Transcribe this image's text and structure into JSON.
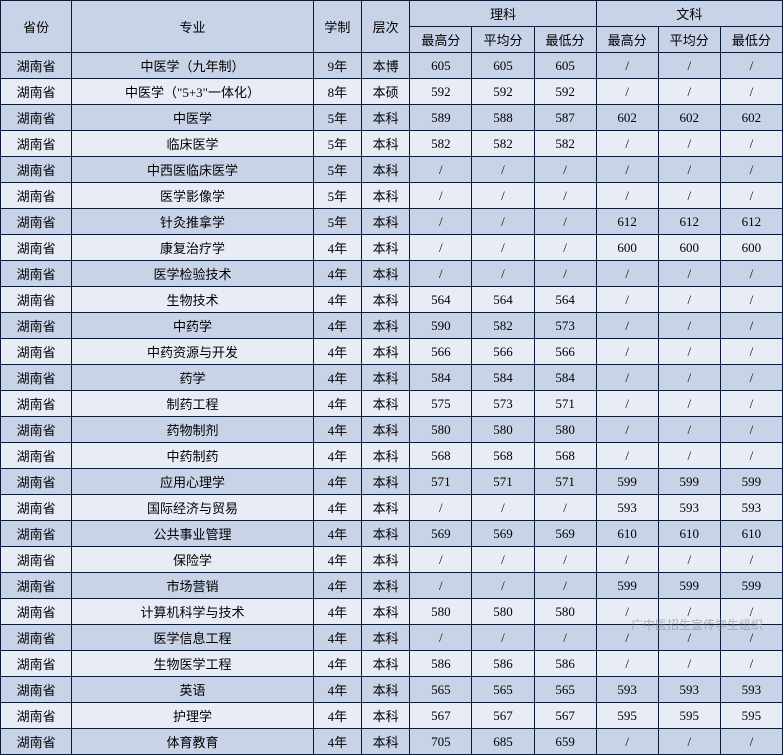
{
  "headers": {
    "province": "省份",
    "major": "专业",
    "duration": "学制",
    "level": "层次",
    "science": "理科",
    "arts": "文科",
    "max": "最高分",
    "avg": "平均分",
    "min": "最低分"
  },
  "colors": {
    "header_bg": "#c9d3e8",
    "row_odd_bg": "#c9d3e8",
    "row_even_bg": "#e8ecf5",
    "border": "#0a1a3a"
  },
  "watermark": "广中医招生宣传学生组织",
  "rows": [
    {
      "province": "湖南省",
      "major": "中医学（九年制）",
      "duration": "9年",
      "level": "本博",
      "sci_max": "605",
      "sci_avg": "605",
      "sci_min": "605",
      "art_max": "/",
      "art_avg": "/",
      "art_min": "/"
    },
    {
      "province": "湖南省",
      "major": "中医学（\"5+3\"一体化）",
      "duration": "8年",
      "level": "本硕",
      "sci_max": "592",
      "sci_avg": "592",
      "sci_min": "592",
      "art_max": "/",
      "art_avg": "/",
      "art_min": "/"
    },
    {
      "province": "湖南省",
      "major": "中医学",
      "duration": "5年",
      "level": "本科",
      "sci_max": "589",
      "sci_avg": "588",
      "sci_min": "587",
      "art_max": "602",
      "art_avg": "602",
      "art_min": "602"
    },
    {
      "province": "湖南省",
      "major": "临床医学",
      "duration": "5年",
      "level": "本科",
      "sci_max": "582",
      "sci_avg": "582",
      "sci_min": "582",
      "art_max": "/",
      "art_avg": "/",
      "art_min": "/"
    },
    {
      "province": "湖南省",
      "major": "中西医临床医学",
      "duration": "5年",
      "level": "本科",
      "sci_max": "/",
      "sci_avg": "/",
      "sci_min": "/",
      "art_max": "/",
      "art_avg": "/",
      "art_min": "/"
    },
    {
      "province": "湖南省",
      "major": "医学影像学",
      "duration": "5年",
      "level": "本科",
      "sci_max": "/",
      "sci_avg": "/",
      "sci_min": "/",
      "art_max": "/",
      "art_avg": "/",
      "art_min": "/"
    },
    {
      "province": "湖南省",
      "major": "针灸推拿学",
      "duration": "5年",
      "level": "本科",
      "sci_max": "/",
      "sci_avg": "/",
      "sci_min": "/",
      "art_max": "612",
      "art_avg": "612",
      "art_min": "612"
    },
    {
      "province": "湖南省",
      "major": "康复治疗学",
      "duration": "4年",
      "level": "本科",
      "sci_max": "/",
      "sci_avg": "/",
      "sci_min": "/",
      "art_max": "600",
      "art_avg": "600",
      "art_min": "600"
    },
    {
      "province": "湖南省",
      "major": "医学检验技术",
      "duration": "4年",
      "level": "本科",
      "sci_max": "/",
      "sci_avg": "/",
      "sci_min": "/",
      "art_max": "/",
      "art_avg": "/",
      "art_min": "/"
    },
    {
      "province": "湖南省",
      "major": "生物技术",
      "duration": "4年",
      "level": "本科",
      "sci_max": "564",
      "sci_avg": "564",
      "sci_min": "564",
      "art_max": "/",
      "art_avg": "/",
      "art_min": "/"
    },
    {
      "province": "湖南省",
      "major": "中药学",
      "duration": "4年",
      "level": "本科",
      "sci_max": "590",
      "sci_avg": "582",
      "sci_min": "573",
      "art_max": "/",
      "art_avg": "/",
      "art_min": "/"
    },
    {
      "province": "湖南省",
      "major": "中药资源与开发",
      "duration": "4年",
      "level": "本科",
      "sci_max": "566",
      "sci_avg": "566",
      "sci_min": "566",
      "art_max": "/",
      "art_avg": "/",
      "art_min": "/"
    },
    {
      "province": "湖南省",
      "major": "药学",
      "duration": "4年",
      "level": "本科",
      "sci_max": "584",
      "sci_avg": "584",
      "sci_min": "584",
      "art_max": "/",
      "art_avg": "/",
      "art_min": "/"
    },
    {
      "province": "湖南省",
      "major": "制药工程",
      "duration": "4年",
      "level": "本科",
      "sci_max": "575",
      "sci_avg": "573",
      "sci_min": "571",
      "art_max": "/",
      "art_avg": "/",
      "art_min": "/"
    },
    {
      "province": "湖南省",
      "major": "药物制剂",
      "duration": "4年",
      "level": "本科",
      "sci_max": "580",
      "sci_avg": "580",
      "sci_min": "580",
      "art_max": "/",
      "art_avg": "/",
      "art_min": "/"
    },
    {
      "province": "湖南省",
      "major": "中药制药",
      "duration": "4年",
      "level": "本科",
      "sci_max": "568",
      "sci_avg": "568",
      "sci_min": "568",
      "art_max": "/",
      "art_avg": "/",
      "art_min": "/"
    },
    {
      "province": "湖南省",
      "major": "应用心理学",
      "duration": "4年",
      "level": "本科",
      "sci_max": "571",
      "sci_avg": "571",
      "sci_min": "571",
      "art_max": "599",
      "art_avg": "599",
      "art_min": "599"
    },
    {
      "province": "湖南省",
      "major": "国际经济与贸易",
      "duration": "4年",
      "level": "本科",
      "sci_max": "/",
      "sci_avg": "/",
      "sci_min": "/",
      "art_max": "593",
      "art_avg": "593",
      "art_min": "593"
    },
    {
      "province": "湖南省",
      "major": "公共事业管理",
      "duration": "4年",
      "level": "本科",
      "sci_max": "569",
      "sci_avg": "569",
      "sci_min": "569",
      "art_max": "610",
      "art_avg": "610",
      "art_min": "610"
    },
    {
      "province": "湖南省",
      "major": "保险学",
      "duration": "4年",
      "level": "本科",
      "sci_max": "/",
      "sci_avg": "/",
      "sci_min": "/",
      "art_max": "/",
      "art_avg": "/",
      "art_min": "/"
    },
    {
      "province": "湖南省",
      "major": "市场营销",
      "duration": "4年",
      "level": "本科",
      "sci_max": "/",
      "sci_avg": "/",
      "sci_min": "/",
      "art_max": "599",
      "art_avg": "599",
      "art_min": "599"
    },
    {
      "province": "湖南省",
      "major": "计算机科学与技术",
      "duration": "4年",
      "level": "本科",
      "sci_max": "580",
      "sci_avg": "580",
      "sci_min": "580",
      "art_max": "/",
      "art_avg": "/",
      "art_min": "/"
    },
    {
      "province": "湖南省",
      "major": "医学信息工程",
      "duration": "4年",
      "level": "本科",
      "sci_max": "/",
      "sci_avg": "/",
      "sci_min": "/",
      "art_max": "/",
      "art_avg": "/",
      "art_min": "/"
    },
    {
      "province": "湖南省",
      "major": "生物医学工程",
      "duration": "4年",
      "level": "本科",
      "sci_max": "586",
      "sci_avg": "586",
      "sci_min": "586",
      "art_max": "/",
      "art_avg": "/",
      "art_min": "/"
    },
    {
      "province": "湖南省",
      "major": "英语",
      "duration": "4年",
      "level": "本科",
      "sci_max": "565",
      "sci_avg": "565",
      "sci_min": "565",
      "art_max": "593",
      "art_avg": "593",
      "art_min": "593"
    },
    {
      "province": "湖南省",
      "major": "护理学",
      "duration": "4年",
      "level": "本科",
      "sci_max": "567",
      "sci_avg": "567",
      "sci_min": "567",
      "art_max": "595",
      "art_avg": "595",
      "art_min": "595"
    },
    {
      "province": "湖南省",
      "major": "体育教育",
      "duration": "4年",
      "level": "本科",
      "sci_max": "705",
      "sci_avg": "685",
      "sci_min": "659",
      "art_max": "/",
      "art_avg": "/",
      "art_min": "/"
    }
  ]
}
